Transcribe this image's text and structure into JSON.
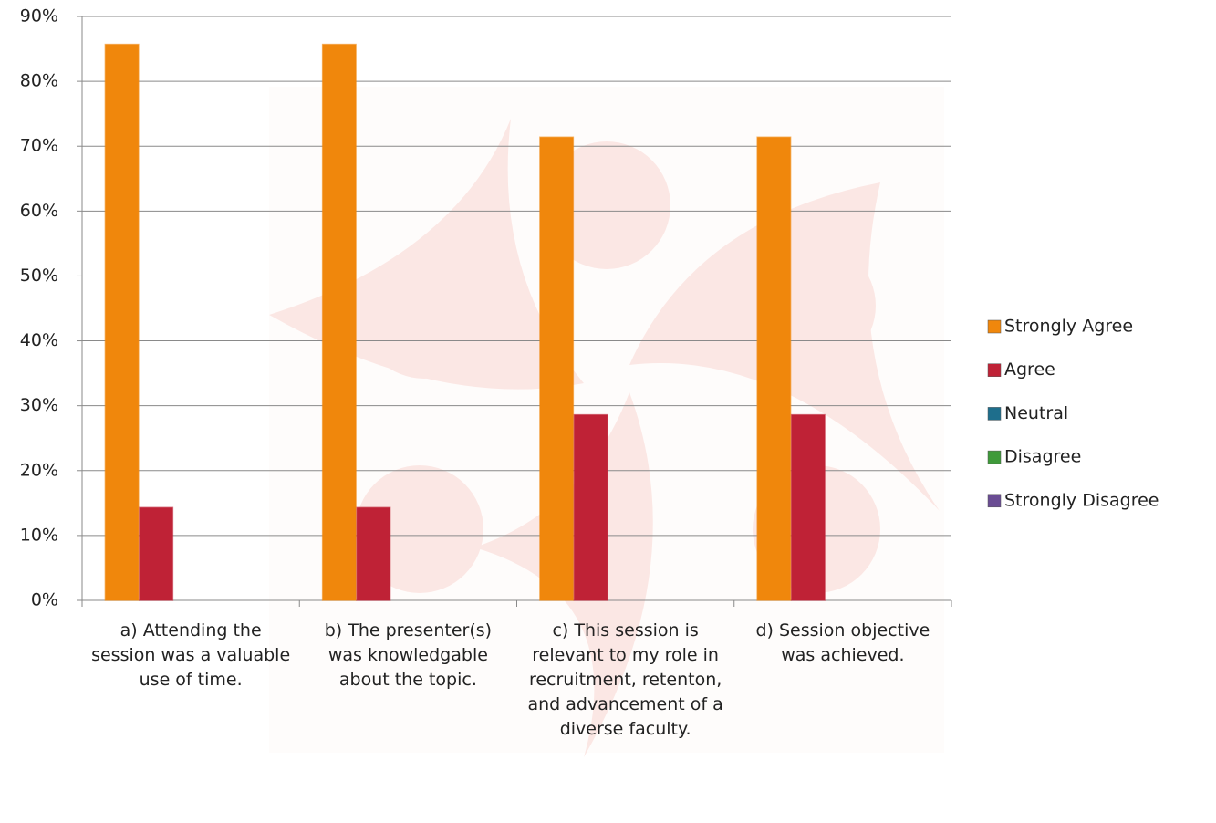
{
  "chart_data": {
    "type": "bar",
    "categories": [
      "a) Attending the session was a valuable use of time.",
      "b) The presenter(s) was knowledgable about the topic.",
      "c) This session is relevant to my role in recruitment, retenton, and advancement of a diverse faculty.",
      "d) Session objective was achieved."
    ],
    "series": [
      {
        "name": "Strongly Agree",
        "color": "#f0870c",
        "values": [
          85.7,
          85.7,
          71.4,
          71.4
        ]
      },
      {
        "name": "Agree",
        "color": "#bf2236",
        "values": [
          14.3,
          14.3,
          28.6,
          28.6
        ]
      },
      {
        "name": "Neutral",
        "color": "#1e6e8c",
        "values": [
          0,
          0,
          0,
          0
        ]
      },
      {
        "name": "Disagree",
        "color": "#3f9a3a",
        "values": [
          0,
          0,
          0,
          0
        ]
      },
      {
        "name": "Strongly Disagree",
        "color": "#6a4c93",
        "values": [
          0,
          0,
          0,
          0
        ]
      }
    ],
    "ylim": [
      0,
      90
    ],
    "yticks": [
      {
        "value": 0,
        "label": "0%"
      },
      {
        "value": 10,
        "label": "10%"
      },
      {
        "value": 20,
        "label": "20%"
      },
      {
        "value": 30,
        "label": "30%"
      },
      {
        "value": 40,
        "label": "40%"
      },
      {
        "value": 50,
        "label": "50%"
      },
      {
        "value": 60,
        "label": "60%"
      },
      {
        "value": 70,
        "label": "70%"
      },
      {
        "value": 80,
        "label": "80%"
      },
      {
        "value": 90,
        "label": "90%"
      }
    ],
    "grid": true,
    "legend": "right"
  }
}
